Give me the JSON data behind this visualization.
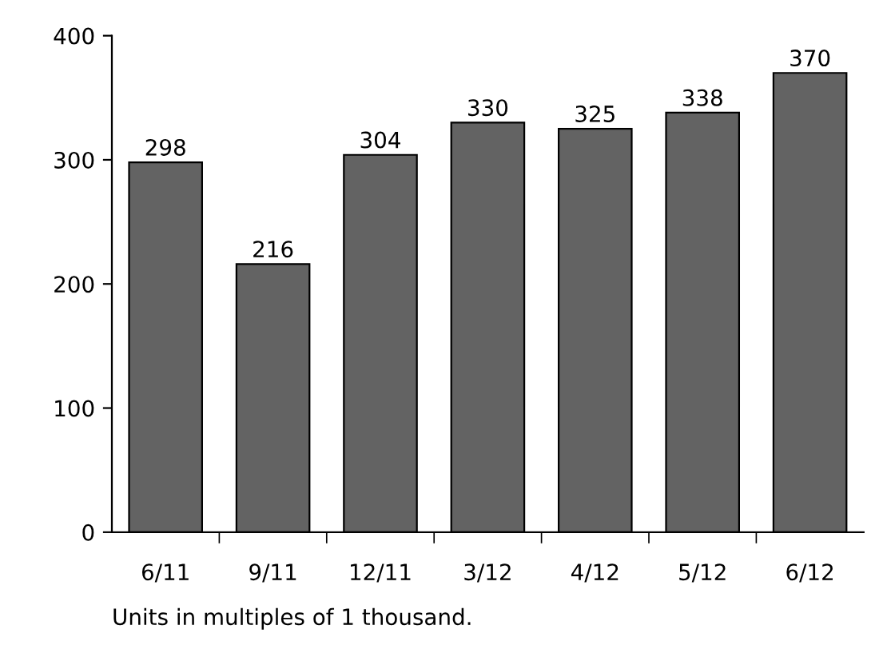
{
  "chart_data": {
    "type": "bar",
    "categories": [
      "6/11",
      "9/11",
      "12/11",
      "3/12",
      "4/12",
      "5/12",
      "6/12"
    ],
    "values": [
      298,
      216,
      304,
      330,
      325,
      338,
      370
    ],
    "color": "#636363",
    "ylim": [
      0,
      400
    ],
    "yticks": [
      0,
      100,
      200,
      300,
      400
    ],
    "grid": false,
    "legend": false,
    "data_labels": true,
    "annotations": [
      "Units in multiples of 1 thousand."
    ]
  }
}
